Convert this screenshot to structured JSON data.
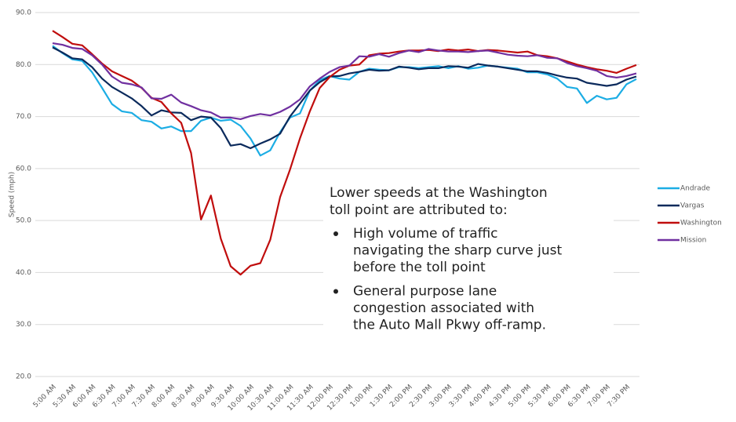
{
  "chart_data": {
    "type": "line",
    "y_label": "Speed (mph)",
    "categories": [
      "5:00 AM",
      null,
      "5:30 AM",
      null,
      "6:00 AM",
      null,
      "6:30 AM",
      null,
      "7:00 AM",
      null,
      "7:30 AM",
      null,
      "8:00 AM",
      null,
      "8:30 AM",
      null,
      "9:00 AM",
      null,
      "9:30 AM",
      null,
      "10:00 AM",
      null,
      "10:30 AM",
      null,
      "11:00 AM",
      null,
      "11:30 AM",
      null,
      "12:00 PM",
      null,
      "12:30 PM",
      null,
      "1:00 PM",
      null,
      "1:30 PM",
      null,
      "2:00 PM",
      null,
      "2:30 PM",
      null,
      "3:00 PM",
      null,
      "3:30 PM",
      null,
      "4:00 PM",
      null,
      "4:30 PM",
      null,
      "5:00 PM",
      null,
      "5:30 PM",
      null,
      "6:00 PM",
      null,
      "6:30 PM",
      null,
      "7:00 PM",
      null,
      "7:30 PM",
      null
    ],
    "series": [
      {
        "name": "Andrade",
        "color": "#1cade4",
        "values": [
          83.6,
          82.2,
          81.0,
          80.7,
          78.5,
          75.5,
          72.4,
          71.0,
          70.7,
          69.3,
          69.0,
          67.7,
          68.1,
          67.2,
          67.2,
          69.2,
          69.8,
          69.2,
          69.4,
          68.2,
          65.8,
          62.5,
          63.5,
          67.0,
          69.8,
          70.6,
          75.0,
          77.0,
          77.8,
          77.3,
          77.1,
          78.6,
          79.2,
          79.0,
          78.9,
          79.5,
          79.5,
          79.3,
          79.5,
          79.7,
          79.3,
          79.7,
          79.2,
          79.4,
          79.8,
          79.6,
          79.4,
          79.2,
          78.5,
          78.5,
          78.1,
          77.3,
          75.7,
          75.4,
          72.6,
          74.0,
          73.3,
          73.6,
          76.2,
          77.2
        ]
      },
      {
        "name": "Vargas",
        "color": "#0b2a5c",
        "values": [
          83.3,
          82.3,
          81.2,
          81.0,
          79.5,
          77.3,
          75.7,
          74.6,
          73.5,
          72.0,
          70.2,
          71.2,
          70.8,
          70.7,
          69.3,
          70.0,
          69.8,
          67.8,
          64.4,
          64.7,
          63.9,
          64.8,
          65.6,
          66.7,
          70.0,
          72.5,
          75.0,
          76.6,
          77.7,
          77.8,
          78.3,
          78.6,
          79.0,
          78.8,
          78.9,
          79.6,
          79.4,
          79.1,
          79.3,
          79.3,
          79.7,
          79.6,
          79.4,
          80.1,
          79.8,
          79.6,
          79.3,
          79.0,
          78.7,
          78.7,
          78.4,
          77.9,
          77.5,
          77.3,
          76.5,
          76.2,
          75.9,
          76.2,
          77.1,
          77.7
        ]
      },
      {
        "name": "Washington",
        "color": "#c00d0d",
        "values": [
          86.5,
          85.3,
          84.0,
          83.7,
          82.0,
          80.2,
          78.7,
          77.8,
          76.9,
          75.5,
          73.6,
          72.8,
          70.6,
          68.8,
          63.0,
          50.2,
          54.8,
          46.5,
          41.2,
          39.6,
          41.3,
          41.8,
          46.3,
          54.5,
          59.8,
          65.8,
          71.0,
          75.5,
          77.6,
          79.0,
          79.8,
          80.0,
          81.8,
          82.1,
          82.2,
          82.5,
          82.7,
          82.7,
          82.8,
          82.6,
          82.9,
          82.7,
          82.9,
          82.6,
          82.8,
          82.7,
          82.5,
          82.3,
          82.5,
          81.8,
          81.6,
          81.2,
          80.6,
          80.0,
          79.5,
          79.1,
          78.8,
          78.4,
          79.2,
          79.9
        ]
      },
      {
        "name": "Mission",
        "color": "#7030a0",
        "values": [
          84.1,
          83.8,
          83.2,
          83.0,
          81.8,
          80.0,
          77.7,
          76.5,
          76.2,
          75.6,
          73.5,
          73.4,
          74.2,
          72.7,
          72.0,
          71.2,
          70.8,
          69.8,
          69.8,
          69.5,
          70.1,
          70.5,
          70.2,
          70.9,
          71.9,
          73.3,
          75.8,
          77.3,
          78.6,
          79.5,
          79.8,
          81.6,
          81.5,
          82.0,
          81.5,
          82.2,
          82.7,
          82.4,
          83.0,
          82.7,
          82.5,
          82.5,
          82.4,
          82.6,
          82.7,
          82.3,
          81.9,
          81.7,
          81.6,
          81.8,
          81.3,
          81.2,
          80.3,
          79.7,
          79.3,
          78.8,
          77.8,
          77.5,
          77.8,
          78.3
        ]
      }
    ],
    "ylim": [
      20,
      90
    ],
    "yticks": [
      {
        "value": 20,
        "label": "20.0"
      },
      {
        "value": 30,
        "label": "30.0"
      },
      {
        "value": 40,
        "label": "40.0"
      },
      {
        "value": 50,
        "label": "50.0"
      },
      {
        "value": 60,
        "label": "60.0"
      },
      {
        "value": 70,
        "label": "70.0"
      },
      {
        "value": 80,
        "label": "80.0"
      },
      {
        "value": 90,
        "label": "90.0"
      }
    ],
    "grid": true,
    "legend": "right",
    "annotation": {
      "text": [
        "Lower speeds at the Washington",
        "toll point are attributed to:"
      ],
      "bullets": [
        [
          "High volume of traffic",
          "navigating the sharp curve just",
          "before the toll point"
        ],
        [
          "General purpose lane",
          "congestion associated with",
          "the Auto Mall Pkwy off-ramp."
        ]
      ]
    }
  }
}
